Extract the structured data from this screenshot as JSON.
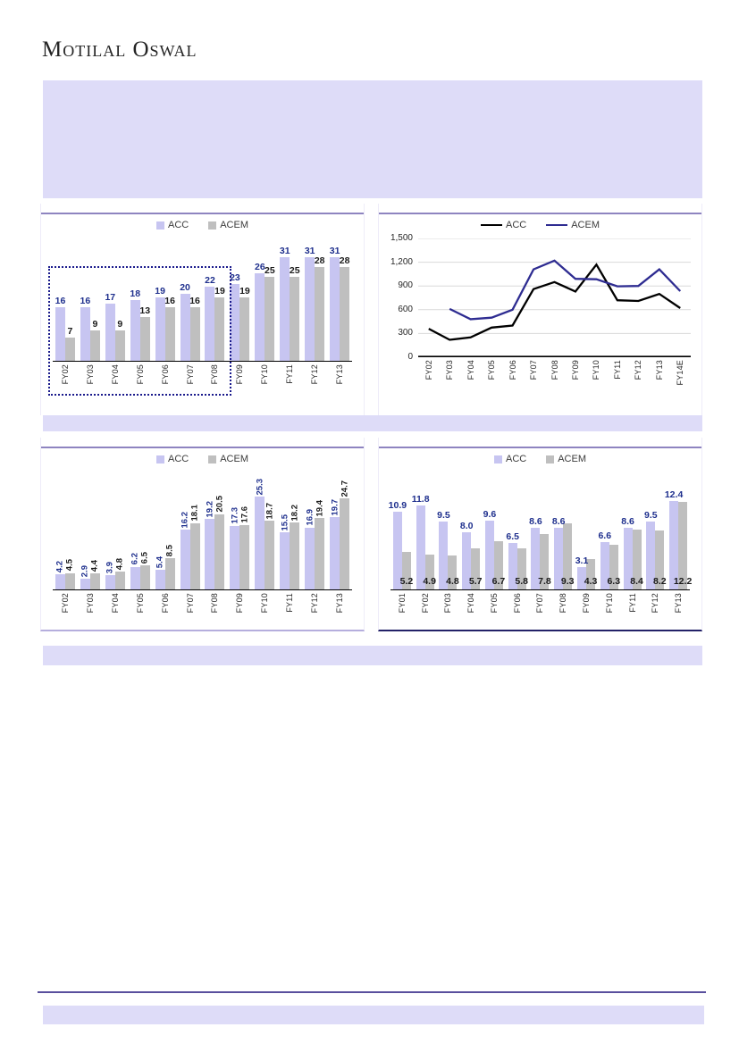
{
  "page": {
    "logo": "Motilal Oswal"
  },
  "colors": {
    "lavender": "#dedcf8",
    "acc_bar": "#c7c5f1",
    "acem_bar": "#bfbfbf",
    "acc_label": "#1e2f8d",
    "acem_label": "#1a1a1a",
    "acc_line": "#000000",
    "acem_line": "#2e2c91",
    "panel_rule": "#8e84c0",
    "footer_rule": "#594f9d",
    "grid": "#d9d9d9",
    "highlight_box": "#1a1a8c"
  },
  "chart_data": [
    {
      "id": "top-left",
      "type": "bar",
      "legend": [
        "ACC",
        "ACEM"
      ],
      "legend_position": "top",
      "categories": [
        "FY02",
        "FY03",
        "FY04",
        "FY05",
        "FY06",
        "FY07",
        "FY08",
        "FY09",
        "FY10",
        "FY11",
        "FY12",
        "FY13"
      ],
      "series": [
        {
          "name": "ACC",
          "values": [
            "16",
            "16",
            "17",
            "18",
            "19",
            "20",
            "22",
            "23",
            "26",
            "31",
            "31",
            "31"
          ]
        },
        {
          "name": "ACEM",
          "values": [
            "7",
            "9",
            "9",
            "13",
            "16",
            "16",
            "19",
            "19",
            "25",
            "25",
            "28",
            "28"
          ]
        }
      ],
      "ylim": [
        0,
        33
      ],
      "value_label_rotation": 0,
      "highlight_box": {
        "from": "FY02",
        "to": "FY08",
        "style": "navy dotted rectangle"
      }
    },
    {
      "id": "top-right",
      "type": "line",
      "legend": [
        "ACC",
        "ACEM"
      ],
      "legend_position": "top",
      "categories": [
        "FY02",
        "FY03",
        "FY04",
        "FY05",
        "FY06",
        "FY07",
        "FY08",
        "FY09",
        "FY10",
        "FY11",
        "FY12",
        "FY13",
        "FY14E"
      ],
      "series": [
        {
          "name": "ACC",
          "values": [
            360,
            220,
            250,
            375,
            400,
            860,
            950,
            830,
            1170,
            720,
            710,
            800,
            620
          ]
        },
        {
          "name": "ACEM",
          "values": [
            null,
            610,
            480,
            500,
            600,
            1110,
            1220,
            990,
            985,
            895,
            900,
            1110,
            835
          ]
        }
      ],
      "ylim": [
        0,
        1500
      ],
      "yticks": [
        "0",
        "300",
        "600",
        "900",
        "1,200",
        "1,500"
      ],
      "grid": true
    },
    {
      "id": "bottom-left",
      "type": "bar",
      "legend": [
        "ACC",
        "ACEM"
      ],
      "legend_position": "top",
      "categories": [
        "FY02",
        "FY03",
        "FY04",
        "FY05",
        "FY06",
        "FY07",
        "FY08",
        "FY09",
        "FY10",
        "FY11",
        "FY12",
        "FY13"
      ],
      "series": [
        {
          "name": "ACC",
          "values": [
            "4.2",
            "2.9",
            "3.9",
            "6.2",
            "5.4",
            "16.2",
            "19.2",
            "17.3",
            "25.3",
            "15.5",
            "16.9",
            "19.7"
          ]
        },
        {
          "name": "ACEM",
          "values": [
            "4.5",
            "4.4",
            "4.8",
            "6.5",
            "8.5",
            "18.1",
            "20.5",
            "17.6",
            "18.7",
            "18.2",
            "19.4",
            "24.7"
          ]
        }
      ],
      "ylim": [
        0,
        27
      ],
      "value_label_rotation": 90
    },
    {
      "id": "bottom-right",
      "type": "bar",
      "legend": [
        "ACC",
        "ACEM"
      ],
      "legend_position": "top",
      "categories": [
        "FY01",
        "FY02",
        "FY03",
        "FY04",
        "FY05",
        "FY06",
        "FY07",
        "FY08",
        "FY09",
        "FY10",
        "FY11",
        "FY12",
        "FY13"
      ],
      "series": [
        {
          "name": "ACC",
          "values": [
            "10.9",
            "11.8",
            "9.5",
            "8.0",
            "9.6",
            "6.5",
            "8.6",
            "8.6",
            "3.1",
            "6.6",
            "8.6",
            "9.5",
            "12.4"
          ]
        },
        {
          "name": "ACEM",
          "values": [
            "5.2",
            "4.9",
            "4.8",
            "5.7",
            "6.7",
            "5.8",
            "7.8",
            "9.3",
            "4.3",
            "6.3",
            "8.4",
            "8.2",
            "12.2"
          ]
        }
      ],
      "ylim": [
        0,
        13.5
      ],
      "value_label_rotation": 0,
      "acem_labels_at_bottom": true
    }
  ]
}
